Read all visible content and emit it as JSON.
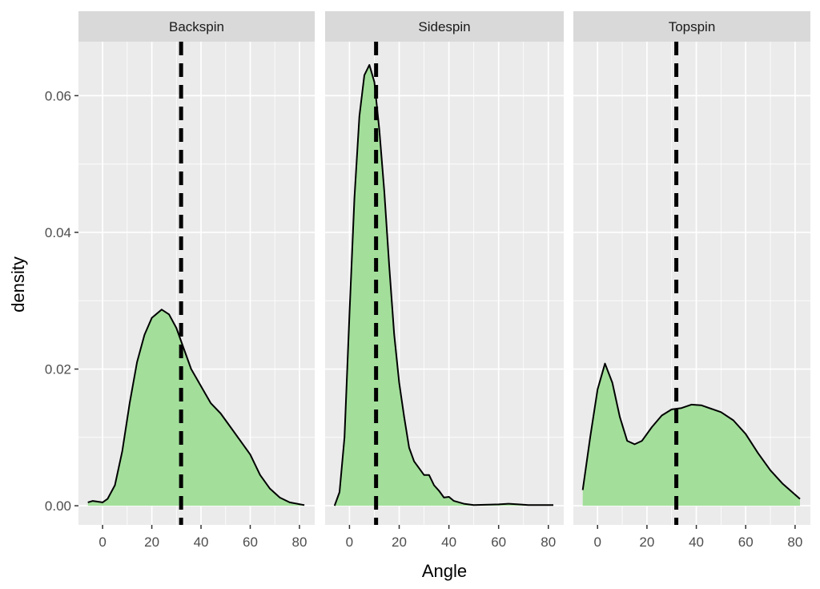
{
  "chart_data": {
    "type": "area",
    "xlabel": "Angle",
    "ylabel": "density",
    "xlim": [
      -9.8,
      86.2
    ],
    "ylim": [
      -0.0028,
      0.0679
    ],
    "x_ticks": [
      0,
      20,
      40,
      60,
      80
    ],
    "y_ticks": [
      0.0,
      0.02,
      0.04,
      0.06
    ],
    "y_tick_labels": [
      "0.00",
      "0.02",
      "0.04",
      "0.06"
    ],
    "grid": true,
    "colors": {
      "panel": "#EBEBEB",
      "strip": "#D9D9D9",
      "fill": "#A3DF9B",
      "line": "#000000",
      "text": "#4D4D4D"
    },
    "mean_line_style": "dashed",
    "facets": [
      {
        "name": "Backspin",
        "mean": 31.9,
        "x": [
          -6,
          -4,
          -2,
          0,
          2,
          5,
          8,
          11,
          14,
          17,
          20,
          24,
          27,
          30,
          33,
          36,
          40,
          44,
          48,
          52,
          56,
          60,
          64,
          68,
          72,
          76,
          82
        ],
        "y": [
          0.0005,
          0.0007,
          0.0006,
          0.0005,
          0.001,
          0.003,
          0.008,
          0.015,
          0.021,
          0.025,
          0.0275,
          0.0287,
          0.028,
          0.026,
          0.023,
          0.02,
          0.0175,
          0.015,
          0.0135,
          0.0115,
          0.0095,
          0.0075,
          0.0045,
          0.0025,
          0.0012,
          0.0005,
          0.0001
        ]
      },
      {
        "name": "Sidespin",
        "mean": 10.7,
        "x": [
          -6,
          -4,
          -2,
          0,
          2,
          4,
          6,
          8,
          10,
          12,
          14,
          16,
          18,
          20,
          22,
          24,
          26,
          28,
          30,
          32,
          34,
          36,
          38,
          40,
          42,
          46,
          50,
          60,
          64,
          68,
          72,
          82
        ],
        "y": [
          0,
          0.002,
          0.01,
          0.028,
          0.045,
          0.057,
          0.063,
          0.0645,
          0.062,
          0.055,
          0.046,
          0.035,
          0.025,
          0.018,
          0.013,
          0.0085,
          0.0065,
          0.0055,
          0.0045,
          0.0045,
          0.003,
          0.0022,
          0.0012,
          0.0013,
          0.0007,
          0.0003,
          0.0001,
          0.0002,
          0.0003,
          0.0002,
          0.0001,
          0.0001
        ]
      },
      {
        "name": "Topspin",
        "mean": 31.9,
        "x": [
          -6,
          -3,
          0,
          3,
          6,
          9,
          12,
          15,
          18,
          22,
          26,
          30,
          34,
          38,
          42,
          46,
          50,
          55,
          60,
          65,
          70,
          75,
          82
        ],
        "y": [
          0.0023,
          0.01,
          0.017,
          0.0208,
          0.018,
          0.013,
          0.0095,
          0.009,
          0.0095,
          0.0115,
          0.0132,
          0.0141,
          0.0143,
          0.0148,
          0.0147,
          0.0142,
          0.0137,
          0.0125,
          0.0105,
          0.0077,
          0.0052,
          0.0032,
          0.001
        ]
      }
    ]
  }
}
